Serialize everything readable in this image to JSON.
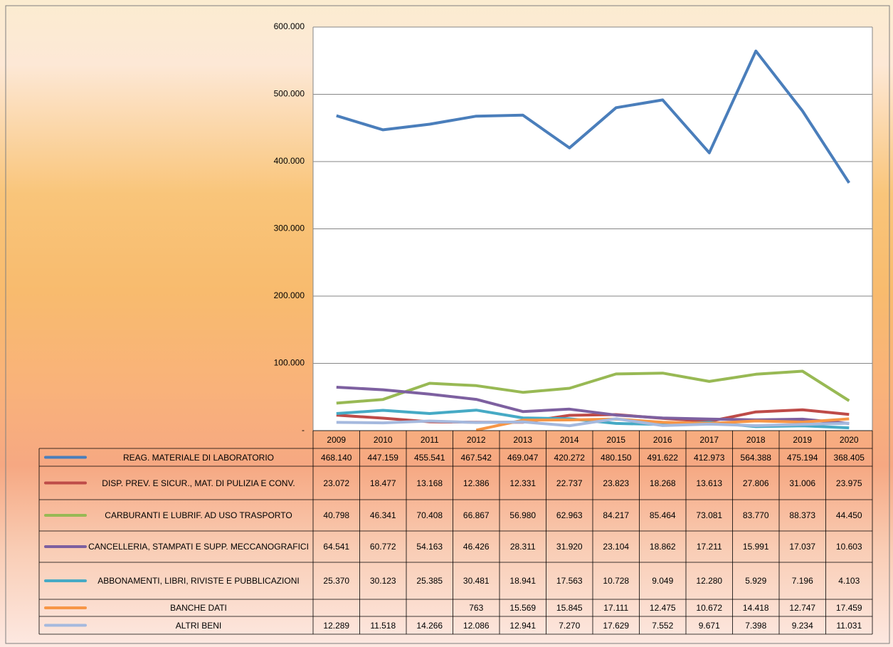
{
  "chart_data": {
    "type": "line",
    "categories": [
      "2009",
      "2010",
      "2011",
      "2012",
      "2013",
      "2014",
      "2015",
      "2016",
      "2017",
      "2018",
      "2019",
      "2020"
    ],
    "ylim": [
      0,
      600000
    ],
    "yticks": [
      {
        "value": 0,
        "label": "-"
      },
      {
        "value": 100000,
        "label": "100.000"
      },
      {
        "value": 200000,
        "label": "200.000"
      },
      {
        "value": 300000,
        "label": "300.000"
      },
      {
        "value": 400000,
        "label": "400.000"
      },
      {
        "value": 500000,
        "label": "500.000"
      },
      {
        "value": 600000,
        "label": "600.000"
      }
    ],
    "grid": true,
    "series": [
      {
        "name": "REAG. MATERIALE DI LABORATORIO",
        "color": "#4a7ebb",
        "values": [
          468140,
          447159,
          455541,
          467542,
          469047,
          420272,
          480150,
          491622,
          412973,
          564388,
          475194,
          368405
        ],
        "value_labels": [
          "468.140",
          "447.159",
          "455.541",
          "467.542",
          "469.047",
          "420.272",
          "480.150",
          "491.622",
          "412.973",
          "564.388",
          "475.194",
          "368.405"
        ]
      },
      {
        "name": "DISP. PREV. E SICUR., MAT. DI PULIZIA E CONV.",
        "color": "#be4b48",
        "values": [
          23072,
          18477,
          13168,
          12386,
          12331,
          22737,
          23823,
          18268,
          13613,
          27806,
          31006,
          23975
        ],
        "value_labels": [
          "23.072",
          "18.477",
          "13.168",
          "12.386",
          "12.331",
          "22.737",
          "23.823",
          "18.268",
          "13.613",
          "27.806",
          "31.006",
          "23.975"
        ]
      },
      {
        "name": "CARBURANTI E LUBRIF. AD USO TRASPORTO",
        "color": "#98b954",
        "values": [
          40798,
          46341,
          70408,
          66867,
          56980,
          62963,
          84217,
          85464,
          73081,
          83770,
          88373,
          44450
        ],
        "value_labels": [
          "40.798",
          "46.341",
          "70.408",
          "66.867",
          "56.980",
          "62.963",
          "84.217",
          "85.464",
          "73.081",
          "83.770",
          "88.373",
          "44.450"
        ]
      },
      {
        "name": "CANCELLERIA, STAMPATI E SUPP. MECCANOGRAFICI",
        "color": "#7d60a0",
        "values": [
          64541,
          60772,
          54163,
          46426,
          28311,
          31920,
          23104,
          18862,
          17211,
          15991,
          17037,
          10603
        ],
        "value_labels": [
          "64.541",
          "60.772",
          "54.163",
          "46.426",
          "28.311",
          "31.920",
          "23.104",
          "18.862",
          "17.211",
          "15.991",
          "17.037",
          "10.603"
        ]
      },
      {
        "name": "ABBONAMENTI, LIBRI, RIVISTE E PUBBLICAZIONI",
        "color": "#46aac5",
        "values": [
          25370,
          30123,
          25385,
          30481,
          18941,
          17563,
          10728,
          9049,
          12280,
          5929,
          7196,
          4103
        ],
        "value_labels": [
          "25.370",
          "30.123",
          "25.385",
          "30.481",
          "18.941",
          "17.563",
          "10.728",
          "9.049",
          "12.280",
          "5.929",
          "7.196",
          "4.103"
        ]
      },
      {
        "name": "BANCHE DATI",
        "color": "#f79646",
        "values": [
          null,
          null,
          null,
          763,
          15569,
          15845,
          17111,
          12475,
          10672,
          14418,
          12747,
          17459
        ],
        "value_labels": [
          null,
          null,
          null,
          "763",
          "15.569",
          "15.845",
          "17.111",
          "12.475",
          "10.672",
          "14.418",
          "12.747",
          "17.459"
        ]
      },
      {
        "name": "ALTRI BENI",
        "color": "#a5b9de",
        "values": [
          12289,
          11518,
          14266,
          12086,
          12941,
          7270,
          17629,
          7552,
          9671,
          7398,
          9234,
          11031
        ],
        "value_labels": [
          "12.289",
          "11.518",
          "14.266",
          "12.086",
          "12.941",
          "7.270",
          "17.629",
          "7.552",
          "9.671",
          "7.398",
          "9.234",
          "11.031"
        ]
      }
    ]
  }
}
